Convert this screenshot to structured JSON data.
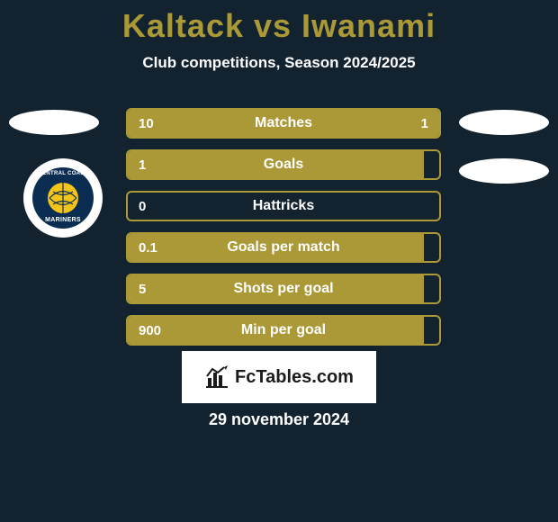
{
  "title_text": "Kaltack vs Iwanami",
  "subtitle_text": "Club competitions, Season 2024/2025",
  "date_text": "29 november 2024",
  "brand_text": "FcTables.com",
  "logo_arc_text": "CENTRAL COAST",
  "logo_main_text": "MARINERS",
  "colors": {
    "bg": "#12232f",
    "title": "#ab9836",
    "subtitle": "#ffffff",
    "ellipse": "#ffffff",
    "bar_border": "#ab9836",
    "bar_fill": "#ab9836",
    "bar_bg": "#12232f",
    "bar_text": "#ffffff",
    "brand_bg": "#ffffff",
    "brand_text": "#1b1b1b",
    "date": "#ffffff",
    "logo_bg": "#ffffff",
    "logo_inner": "#0b2d52",
    "logo_text": "#ffffff",
    "logo_ball": "#f4c518",
    "logo_ball_lines": "#0b2d52"
  },
  "stats": [
    {
      "label": "Matches",
      "left_val": "10",
      "right_val": "1",
      "left_pct": 75,
      "right_pct": 25
    },
    {
      "label": "Goals",
      "left_val": "1",
      "right_val": "",
      "left_pct": 95,
      "right_pct": 0
    },
    {
      "label": "Hattricks",
      "left_val": "0",
      "right_val": "",
      "left_pct": 0,
      "right_pct": 0
    },
    {
      "label": "Goals per match",
      "left_val": "0.1",
      "right_val": "",
      "left_pct": 95,
      "right_pct": 0
    },
    {
      "label": "Shots per goal",
      "left_val": "5",
      "right_val": "",
      "left_pct": 95,
      "right_pct": 0
    },
    {
      "label": "Min per goal",
      "left_val": "900",
      "right_val": "",
      "left_pct": 95,
      "right_pct": 0
    }
  ]
}
